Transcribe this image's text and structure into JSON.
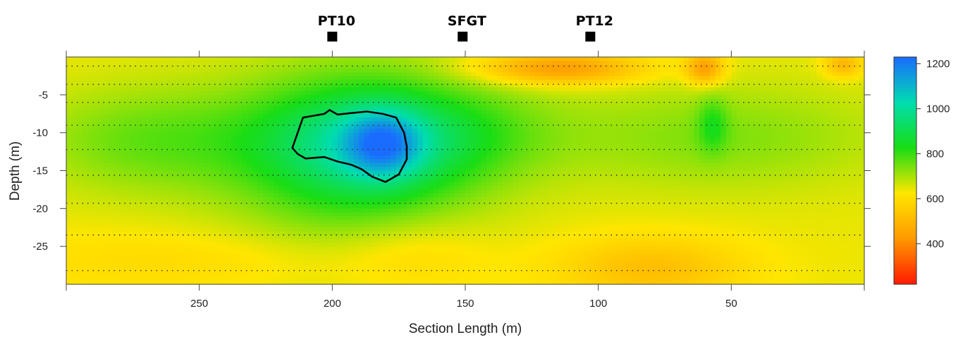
{
  "chart_data": {
    "type": "heatmap",
    "title": "",
    "xlabel": "Section Length (m)",
    "ylabel": "Depth (m)",
    "x_reversed": true,
    "xlim": [
      300,
      0
    ],
    "ylim": [
      -30,
      0
    ],
    "x_ticks": [
      250,
      200,
      150,
      100,
      50
    ],
    "y_ticks": [
      -5,
      -10,
      -15,
      -20,
      -25
    ],
    "x_tick_labels": [
      "250",
      "200",
      "150",
      "100",
      "50"
    ],
    "y_tick_labels": [
      "-5",
      "-10",
      "-15",
      "-20",
      "-25"
    ],
    "dotted_depth_lines": [
      -1.2,
      -3.6,
      -6.0,
      -9.0,
      -12.2,
      -15.6,
      -19.3,
      -23.5,
      -28.2
    ],
    "markers": [
      {
        "label": "PT10",
        "x": 200
      },
      {
        "label": "SFGT",
        "x": 151
      },
      {
        "label": "PT12",
        "x": 103
      }
    ],
    "colorbar": {
      "min": 220,
      "max": 1230,
      "ticks": [
        400,
        600,
        800,
        1000,
        1200
      ],
      "tick_labels": [
        "400",
        "600",
        "800",
        "1000",
        "1200"
      ],
      "colors": [
        "#ff1a00",
        "#ff9900",
        "#ffe600",
        "#19dd14",
        "#00ddb0",
        "#1a6bff"
      ]
    },
    "anomaly_contour": {
      "points": [
        [
          215,
          -12.0
        ],
        [
          214,
          -11.0
        ],
        [
          211,
          -8.0
        ],
        [
          203,
          -7.5
        ],
        [
          201,
          -7.0
        ],
        [
          198,
          -7.6
        ],
        [
          193,
          -7.4
        ],
        [
          187,
          -7.2
        ],
        [
          181,
          -7.5
        ],
        [
          176,
          -8.0
        ],
        [
          173,
          -10.0
        ],
        [
          172,
          -11.8
        ],
        [
          172,
          -13.5
        ],
        [
          175,
          -15.5
        ],
        [
          180,
          -16.5
        ],
        [
          185,
          -15.8
        ],
        [
          189,
          -14.8
        ],
        [
          193,
          -14.2
        ],
        [
          198,
          -13.8
        ],
        [
          203,
          -13.2
        ],
        [
          210,
          -13.4
        ],
        [
          213,
          -12.8
        ]
      ]
    },
    "velocity_field": {
      "background": 640,
      "bumps": [
        {
          "x": 190,
          "y": -11.5,
          "sx": 28,
          "sy": 5.5,
          "a": 230
        },
        {
          "x": 181,
          "y": -11.5,
          "sx": 10,
          "sy": 3.0,
          "a": 250
        },
        {
          "x": 190,
          "y": -14,
          "sx": 34,
          "sy": 10,
          "a": 120
        },
        {
          "x": 268,
          "y": -11,
          "sx": 32,
          "sy": 5,
          "a": 120
        },
        {
          "x": 150,
          "y": -10,
          "sx": 26,
          "sy": 4.5,
          "a": 90
        },
        {
          "x": 55,
          "y": -10.5,
          "sx": 45,
          "sy": 5,
          "a": 95
        },
        {
          "x": 57,
          "y": -9,
          "sx": 4,
          "sy": 2.5,
          "a": 110
        },
        {
          "x": 115,
          "y": -1.5,
          "sx": 22,
          "sy": 1.5,
          "a": -220
        },
        {
          "x": 60,
          "y": -1.5,
          "sx": 5,
          "sy": 1.5,
          "a": -210
        },
        {
          "x": 8,
          "y": -1.0,
          "sx": 5,
          "sy": 1.2,
          "a": -150
        },
        {
          "x": 80,
          "y": -28,
          "sx": 25,
          "sy": 3,
          "a": -120
        },
        {
          "x": 170,
          "y": -26,
          "sx": 20,
          "sy": 4,
          "a": -60
        },
        {
          "x": 250,
          "y": -27,
          "sx": 60,
          "sy": 3,
          "a": -50
        }
      ]
    }
  }
}
